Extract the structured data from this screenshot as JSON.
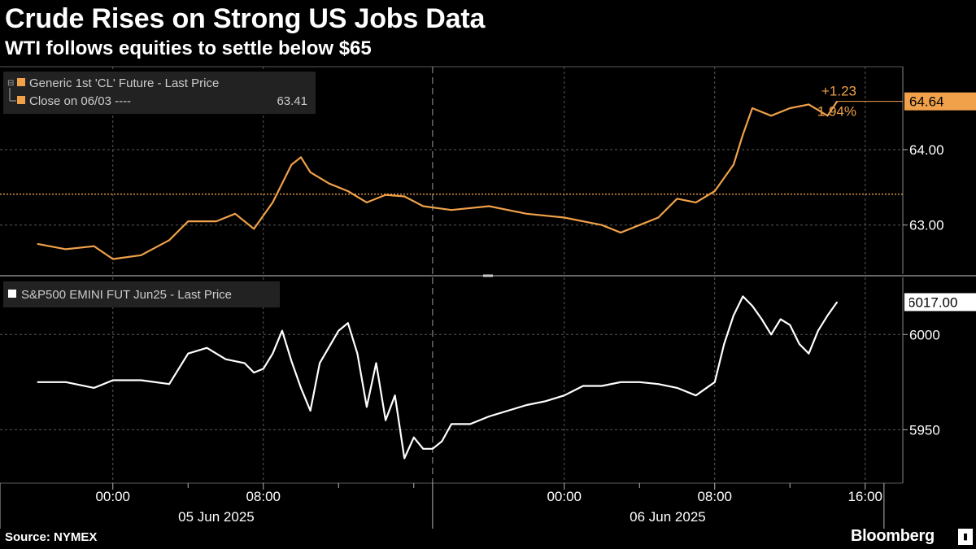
{
  "title": "Crude Rises on Strong US Jobs Data",
  "subtitle": "WTI follows equities to settle below $65",
  "source": "Source: NYMEX",
  "brand": "Bloomberg",
  "brand_mark": "▮",
  "colors": {
    "background": "#000000",
    "oil": "#f0a14a",
    "spx": "#ffffff",
    "grid": "#5a5a5a",
    "axis": "#b4b4b4",
    "legend_bg": "#222222"
  },
  "chart_data": [
    {
      "type": "line",
      "panel": "top",
      "legend": {
        "series_label": "Generic 1st 'CL' Future - Last Price",
        "close_label": "Close on 06/03 ----",
        "close_value_text": "63.41"
      },
      "series": [
        {
          "name": "Generic 1st 'CL' Future - Last Price",
          "x": [
            -4.0,
            -2.5,
            -1.0,
            0.0,
            1.5,
            3.0,
            4.0,
            5.5,
            6.5,
            7.5,
            8.5,
            9.5,
            10.0,
            10.5,
            11.5,
            12.5,
            13.5,
            14.5,
            15.5,
            16.5,
            18.0,
            20.0,
            22.0,
            24.0,
            26.0,
            27.0,
            28.0,
            29.0,
            30.0,
            31.0,
            32.0,
            33.0,
            33.5,
            34.0,
            35.0,
            36.0,
            37.0,
            38.0,
            38.5
          ],
          "values": [
            62.75,
            62.68,
            62.72,
            62.55,
            62.6,
            62.8,
            63.05,
            63.05,
            63.15,
            62.95,
            63.3,
            63.8,
            63.9,
            63.7,
            63.55,
            63.45,
            63.3,
            63.4,
            63.38,
            63.25,
            63.2,
            63.25,
            63.15,
            63.1,
            63.0,
            62.9,
            63.0,
            63.1,
            63.35,
            63.3,
            63.45,
            63.8,
            64.2,
            64.55,
            64.45,
            64.55,
            64.6,
            64.45,
            64.64
          ]
        }
      ],
      "close_line_value": 63.41,
      "last_value": 64.64,
      "last_label": "64.64",
      "change_abs": "+1.23",
      "change_pct": "1.94%",
      "y_ticks": [
        63.0,
        64.0
      ],
      "y_tick_labels": [
        "63.00",
        "64.00"
      ],
      "ylim": [
        62.35,
        65.1
      ]
    },
    {
      "type": "line",
      "panel": "bottom",
      "legend": {
        "series_label": "S&P500 EMINI FUT Jun25 - Last Price"
      },
      "series": [
        {
          "name": "S&P500 EMINI FUT Jun25 - Last Price",
          "x": [
            -4.0,
            -2.5,
            -1.0,
            0.0,
            1.5,
            3.0,
            4.0,
            5.0,
            6.0,
            7.0,
            7.5,
            8.0,
            8.5,
            9.0,
            9.5,
            10.0,
            10.5,
            11.0,
            12.0,
            12.5,
            13.0,
            13.5,
            14.0,
            14.5,
            15.0,
            15.5,
            16.0,
            16.5,
            17.0,
            17.5,
            18.0,
            19.0,
            20.0,
            21.0,
            22.0,
            23.0,
            24.0,
            25.0,
            26.0,
            27.0,
            28.0,
            29.0,
            30.0,
            31.0,
            32.0,
            32.5,
            33.0,
            33.5,
            34.0,
            34.5,
            35.0,
            35.5,
            36.0,
            36.5,
            37.0,
            37.5,
            38.0,
            38.5
          ],
          "values": [
            5975,
            5975,
            5972,
            5976,
            5976,
            5974,
            5990,
            5993,
            5987,
            5985,
            5980,
            5982,
            5990,
            6002,
            5986,
            5972,
            5960,
            5985,
            6002,
            6006,
            5990,
            5962,
            5985,
            5955,
            5968,
            5935,
            5946,
            5940,
            5940,
            5944,
            5953,
            5953,
            5957,
            5960,
            5963,
            5965,
            5968,
            5973,
            5973,
            5975,
            5975,
            5974,
            5972,
            5968,
            5975,
            5995,
            6010,
            6020,
            6015,
            6008,
            6000,
            6008,
            6005,
            5995,
            5990,
            6002,
            6010,
            6017
          ]
        }
      ],
      "last_value": 6017.0,
      "last_label": "6017.00",
      "y_ticks": [
        5950,
        6000
      ],
      "y_tick_labels": [
        "5950",
        "6000"
      ],
      "ylim": [
        5922,
        6030
      ]
    }
  ],
  "x_axis": {
    "range_hours": [
      -6.0,
      42.0
    ],
    "time_ticks": [
      {
        "hour": 0,
        "label": "00:00"
      },
      {
        "hour": 8,
        "label": "08:00"
      },
      {
        "hour": 24,
        "label": "00:00"
      },
      {
        "hour": 32,
        "label": "08:00"
      },
      {
        "hour": 40,
        "label": "16:00"
      }
    ],
    "minor_ticks": [
      4,
      12,
      16,
      28,
      36
    ],
    "day_separators": [
      -6,
      17,
      41
    ],
    "date_labels": [
      {
        "hour": 5.5,
        "label": "05 Jun 2025"
      },
      {
        "hour": 29.5,
        "label": "06 Jun 2025"
      }
    ]
  }
}
